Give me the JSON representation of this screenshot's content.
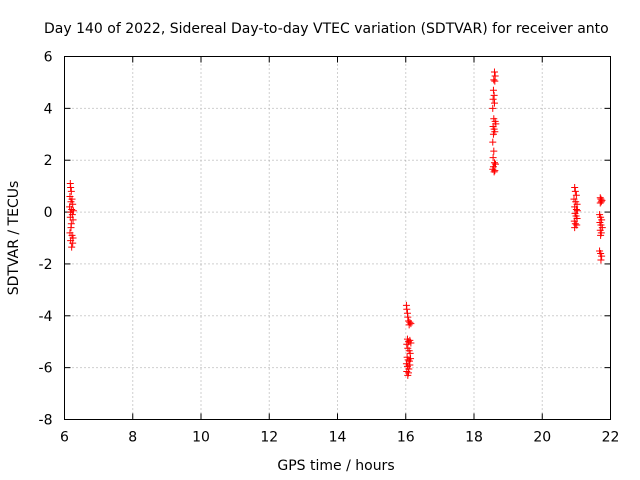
{
  "chart_data": {
    "type": "scatter",
    "title": "Day 140 of 2022, Sidereal Day-to-day VTEC variation (SDTVAR) for receiver anto",
    "xlabel": "GPS time / hours",
    "ylabel": "SDTVAR / TECUs",
    "xlim": [
      6,
      22
    ],
    "ylim": [
      -8,
      6
    ],
    "xticks": [
      "6",
      "8",
      "10",
      "12",
      "14",
      "16",
      "18",
      "20",
      "22"
    ],
    "yticks": [
      "-8",
      "-6",
      "-4",
      "-2",
      "0",
      "2",
      "4",
      "6"
    ],
    "grid": true,
    "marker": "+",
    "color": "#ff0000",
    "series": [
      {
        "name": "SDTVAR",
        "points": [
          [
            6.17,
            1.1
          ],
          [
            6.18,
            0.95
          ],
          [
            6.2,
            0.8
          ],
          [
            6.16,
            0.6
          ],
          [
            6.22,
            0.5
          ],
          [
            6.19,
            0.4
          ],
          [
            6.24,
            0.3
          ],
          [
            6.15,
            0.2
          ],
          [
            6.21,
            0.1
          ],
          [
            6.26,
            0.05
          ],
          [
            6.18,
            0.0
          ],
          [
            6.23,
            -0.1
          ],
          [
            6.17,
            -0.2
          ],
          [
            6.25,
            -0.3
          ],
          [
            6.2,
            -0.45
          ],
          [
            6.19,
            -0.6
          ],
          [
            6.16,
            -0.8
          ],
          [
            6.22,
            -0.9
          ],
          [
            6.25,
            -1.0
          ],
          [
            6.18,
            -1.1
          ],
          [
            6.24,
            -1.2
          ],
          [
            6.21,
            -1.35
          ],
          [
            16.02,
            -3.6
          ],
          [
            16.03,
            -3.75
          ],
          [
            16.05,
            -3.9
          ],
          [
            16.06,
            -4.05
          ],
          [
            16.08,
            -4.2
          ],
          [
            16.1,
            -4.35
          ],
          [
            16.12,
            -4.25
          ],
          [
            16.15,
            -4.3
          ],
          [
            16.05,
            -4.9
          ],
          [
            16.08,
            -5.0
          ],
          [
            16.12,
            -4.95
          ],
          [
            16.15,
            -5.05
          ],
          [
            16.03,
            -5.1
          ],
          [
            16.06,
            -5.25
          ],
          [
            16.1,
            -5.35
          ],
          [
            16.13,
            -5.45
          ],
          [
            16.04,
            -5.6
          ],
          [
            16.07,
            -5.7
          ],
          [
            16.11,
            -5.75
          ],
          [
            16.14,
            -5.65
          ],
          [
            16.02,
            -5.85
          ],
          [
            16.05,
            -5.95
          ],
          [
            16.09,
            -6.05
          ],
          [
            16.12,
            -5.9
          ],
          [
            16.03,
            -6.15
          ],
          [
            16.06,
            -6.3
          ],
          [
            16.08,
            -6.2
          ],
          [
            18.6,
            5.4
          ],
          [
            18.62,
            5.25
          ],
          [
            18.58,
            5.1
          ],
          [
            18.61,
            5.05
          ],
          [
            18.57,
            4.7
          ],
          [
            18.59,
            4.5
          ],
          [
            18.56,
            4.35
          ],
          [
            18.6,
            4.2
          ],
          [
            18.55,
            4.0
          ],
          [
            18.58,
            3.6
          ],
          [
            18.62,
            3.5
          ],
          [
            18.64,
            3.4
          ],
          [
            18.56,
            3.3
          ],
          [
            18.59,
            3.2
          ],
          [
            18.61,
            3.1
          ],
          [
            18.57,
            3.0
          ],
          [
            18.55,
            2.7
          ],
          [
            18.58,
            2.35
          ],
          [
            18.56,
            2.1
          ],
          [
            18.6,
            1.9
          ],
          [
            18.63,
            1.85
          ],
          [
            18.57,
            1.75
          ],
          [
            18.55,
            1.65
          ],
          [
            18.59,
            1.55
          ],
          [
            18.61,
            1.6
          ],
          [
            20.95,
            0.95
          ],
          [
            20.97,
            0.8
          ],
          [
            21.0,
            0.65
          ],
          [
            20.93,
            0.5
          ],
          [
            20.98,
            0.4
          ],
          [
            21.02,
            0.3
          ],
          [
            20.95,
            0.2
          ],
          [
            21.0,
            0.1
          ],
          [
            21.03,
            0.05
          ],
          [
            20.96,
            -0.05
          ],
          [
            20.99,
            -0.15
          ],
          [
            21.02,
            -0.25
          ],
          [
            20.94,
            -0.35
          ],
          [
            20.97,
            -0.45
          ],
          [
            21.01,
            -0.5
          ],
          [
            20.95,
            -0.6
          ],
          [
            21.7,
            0.55
          ],
          [
            21.72,
            0.5
          ],
          [
            21.75,
            0.45
          ],
          [
            21.7,
            0.35
          ],
          [
            21.73,
            0.4
          ],
          [
            21.68,
            -0.1
          ],
          [
            21.71,
            -0.2
          ],
          [
            21.74,
            -0.3
          ],
          [
            21.69,
            -0.4
          ],
          [
            21.72,
            -0.5
          ],
          [
            21.76,
            -0.6
          ],
          [
            21.7,
            -0.7
          ],
          [
            21.73,
            -0.8
          ],
          [
            21.71,
            -0.9
          ],
          [
            21.68,
            -1.5
          ],
          [
            21.71,
            -1.6
          ],
          [
            21.74,
            -1.7
          ],
          [
            21.72,
            -1.85
          ]
        ]
      }
    ]
  }
}
